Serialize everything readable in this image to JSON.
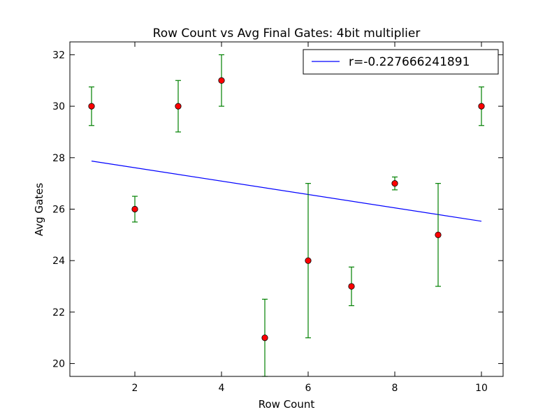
{
  "chart_data": {
    "type": "scatter",
    "title": "Row Count vs Avg Final Gates: 4bit multiplier",
    "xlabel": "Row Count",
    "ylabel": "Avg Gates",
    "xlim": [
      0.5,
      10.5
    ],
    "ylim": [
      19.5,
      32.5
    ],
    "xticks": [
      2,
      4,
      6,
      8,
      10
    ],
    "yticks": [
      20,
      22,
      24,
      26,
      28,
      30,
      32
    ],
    "grid": false,
    "legend_position": "top-right",
    "points": {
      "x": [
        1,
        2,
        3,
        4,
        5,
        6,
        7,
        8,
        9,
        10
      ],
      "y": [
        30,
        26,
        30,
        31,
        21,
        24,
        23,
        27,
        25,
        30
      ],
      "err_low": [
        29.25,
        25.5,
        29,
        30,
        19.5,
        21,
        22.25,
        26.75,
        23,
        29.25
      ],
      "err_high": [
        30.75,
        26.5,
        31,
        32,
        22.5,
        27,
        23.75,
        27.25,
        27,
        30.75
      ],
      "marker_color": "#ff0000",
      "error_color": "#008000"
    },
    "fit_line": {
      "name": "r=-0.227666241891",
      "x": [
        1,
        10
      ],
      "y": [
        27.87,
        25.53
      ],
      "color": "#0000ff"
    }
  }
}
